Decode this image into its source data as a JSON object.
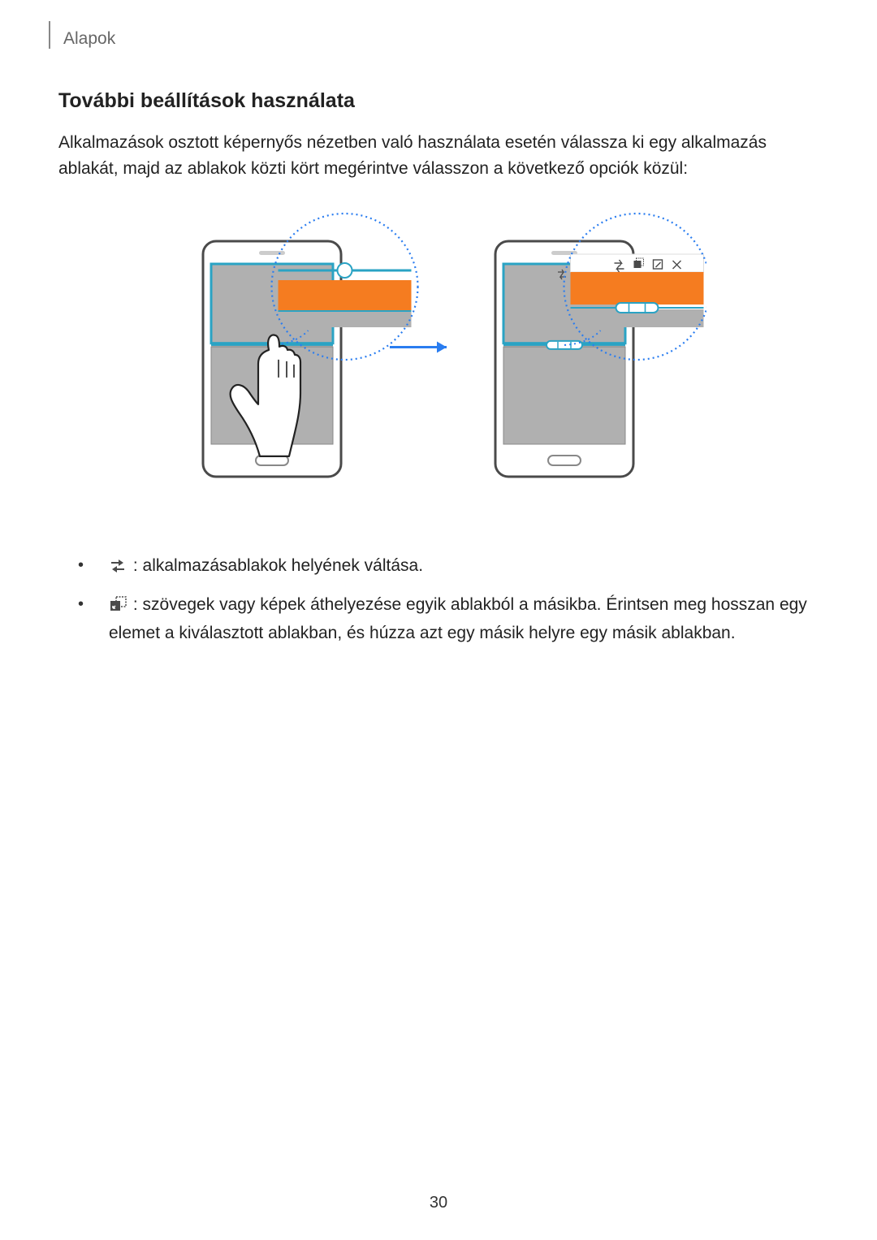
{
  "header": {
    "chapter": "Alapok"
  },
  "section": {
    "title": "További beállítások használata",
    "intro": "Alkalmazások osztott képernyős nézetben való használata esetén válassza ki egy alkalmazás ablakát, majd az ablakok közti kört megérintve válasszon a következő opciók közül:"
  },
  "bullets": {
    "items": [
      {
        "icon": "swap",
        "text": " : alkalmazásablakok helyének váltása."
      },
      {
        "icon": "drag",
        "text": " : szövegek vagy képek áthelyezése egyik ablakból a másikba. Érintsen meg hosszan egy elemet a kiválasztott ablakban, és húzza azt egy másik helyre egy másik ablakban."
      }
    ]
  },
  "figure": {
    "colors": {
      "phone_frame": "#4a4a4a",
      "phone_screen": "#b0b0b0",
      "top_app_border": "#2aa3c4",
      "highlight_bar": "#f57c20",
      "magnifier_dots": "#2a7df0",
      "arrow": "#2a7df0",
      "handle_pill": "#2aa3c4",
      "toolbar_bg": "#ffffff",
      "toolbar_icon": "#4a4a4a",
      "button_outline": "#888888"
    },
    "layout": {
      "phone_w": 170,
      "phone_h": 290,
      "gap": 60,
      "arrow_len": 70
    }
  },
  "page_number": "30"
}
